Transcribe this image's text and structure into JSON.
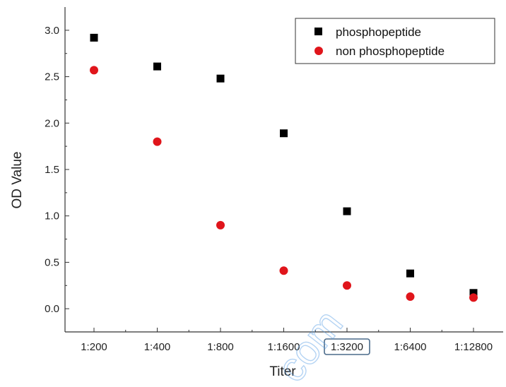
{
  "chart_data": {
    "type": "scatter",
    "categories": [
      "1:200",
      "1:400",
      "1:800",
      "1:1600",
      "1:3200",
      "1:6400",
      "1:12800"
    ],
    "highlighted_category": "1:3200",
    "xlabel": "Titer",
    "ylabel": "OD Value",
    "ylim": [
      -0.25,
      3.25
    ],
    "yticks": [
      "0.0",
      "0.5",
      "1.0",
      "1.5",
      "2.0",
      "2.5",
      "3.0"
    ],
    "ytick_values": [
      0.0,
      0.5,
      1.0,
      1.5,
      2.0,
      2.5,
      3.0
    ],
    "grid": false,
    "legend_position": "top-right",
    "series": [
      {
        "name": "phosphopeptide",
        "marker": "square",
        "color": "#000000",
        "values": [
          2.92,
          2.61,
          2.48,
          1.89,
          1.05,
          0.38,
          0.17
        ]
      },
      {
        "name": "non phosphopeptide",
        "marker": "circle",
        "color": "#e0151b",
        "values": [
          2.57,
          1.8,
          0.9,
          0.41,
          0.25,
          0.13,
          0.12
        ]
      }
    ]
  },
  "watermark": {
    "text": "com",
    "color": "#5aa0e6"
  }
}
